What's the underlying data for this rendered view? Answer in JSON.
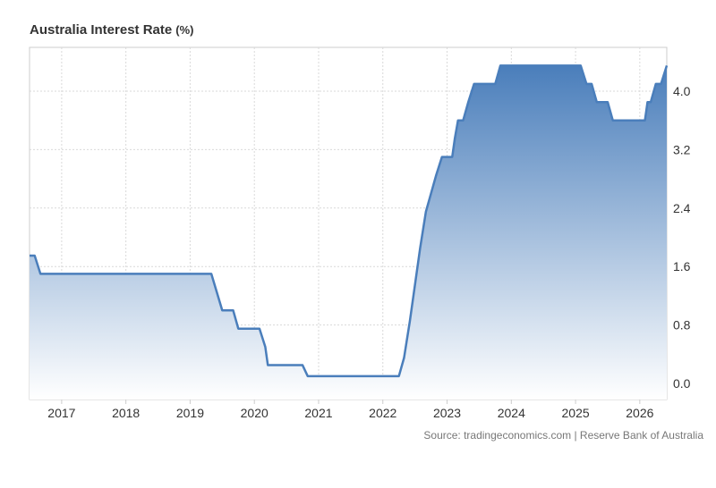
{
  "title": "Australia Interest Rate",
  "unit": "(%)",
  "source": "Source: tradingeconomics.com | Reserve Bank of Australia",
  "colors": {
    "line": "#4a7ebb",
    "fill_top": "#4a7ebb",
    "fill_bottom": "#ffffff",
    "grid": "#d9d9d9",
    "axis": "#cccccc"
  },
  "chart_data": {
    "type": "area",
    "title": "Australia Interest Rate",
    "ylabel": "",
    "xlabel": "",
    "ylim": [
      0,
      4.35
    ],
    "y_ticks": [
      0.0,
      0.8,
      1.6,
      2.4,
      3.2,
      4.0
    ],
    "y_tick_labels": [
      "0.0",
      "0.8",
      "1.6",
      "2.4",
      "3.2",
      "4.0"
    ],
    "x_ticks": [
      2017,
      2018,
      2019,
      2020,
      2021,
      2022,
      2023,
      2024,
      2025,
      2026
    ],
    "x_tick_labels": [
      "2017",
      "2018",
      "2019",
      "2020",
      "2021",
      "2022",
      "2023",
      "2024",
      "2025",
      "2026"
    ],
    "xlim": [
      2016.5,
      2026.42
    ],
    "grid": true,
    "series": [
      {
        "x": [
          2016.5,
          2016.58,
          2016.67,
          2019.33,
          2019.5,
          2019.67,
          2019.75,
          2020.08,
          2020.17,
          2020.21,
          2020.75,
          2020.83,
          2022.25,
          2022.33,
          2022.42,
          2022.5,
          2022.58,
          2022.67,
          2022.75,
          2022.83,
          2022.92,
          2022.96,
          2023.08,
          2023.12,
          2023.17,
          2023.25,
          2023.33,
          2023.42,
          2023.5,
          2023.75,
          2023.83,
          2025.08,
          2025.17,
          2025.25,
          2025.33,
          2025.42,
          2025.5,
          2025.58,
          2025.67,
          2025.75,
          2026.08,
          2026.12,
          2026.17,
          2026.25,
          2026.33,
          2026.42
        ],
        "y": [
          1.75,
          1.75,
          1.5,
          1.5,
          1.0,
          1.0,
          0.75,
          0.75,
          0.5,
          0.25,
          0.25,
          0.1,
          0.1,
          0.35,
          0.85,
          1.35,
          1.85,
          2.35,
          2.6,
          2.85,
          3.1,
          3.1,
          3.1,
          3.35,
          3.6,
          3.6,
          3.85,
          4.1,
          4.1,
          4.1,
          4.35,
          4.35,
          4.1,
          4.1,
          3.85,
          3.85,
          3.85,
          3.6,
          3.6,
          3.6,
          3.6,
          3.85,
          3.85,
          4.1,
          4.1,
          4.35
        ]
      }
    ]
  }
}
